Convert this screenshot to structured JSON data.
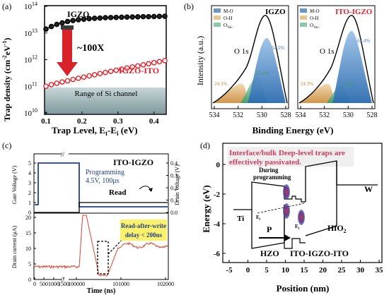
{
  "panel_a": {
    "letter": "(a)",
    "ylabel": "Trap density (cm",
    "ylabel_exp": "-2",
    "ylabel_unit": "eV",
    "ylabel_close": ")",
    "xlabel": "Trap Level, E",
    "x_ticks": [
      "0.1",
      "0.2",
      "0.3",
      "0.4"
    ],
    "y_ticks": [
      {
        "base": "10",
        "exp": "10"
      },
      {
        "base": "10",
        "exp": "11"
      },
      {
        "base": "10",
        "exp": "12"
      },
      {
        "base": "10",
        "exp": "13"
      },
      {
        "base": "10",
        "exp": "14"
      }
    ],
    "label_igzo": "IGZO",
    "label_igzo_ito": "IGZO-ITO",
    "reduction": "~100X",
    "si_range": "Range of Si channel"
  },
  "chart_data": [
    {
      "type": "scatter",
      "panel": "a",
      "xlabel": "Trap Level, Et-Ei (eV)",
      "ylabel": "Trap density (cm-2eV-1)",
      "y_scale": "log",
      "xlim": [
        0.1,
        0.43
      ],
      "ylim": [
        10000000000.0,
        100000000000000.0
      ],
      "series": [
        {
          "name": "IGZO",
          "color": "#000000",
          "x": [
            0.1,
            0.115,
            0.13,
            0.145,
            0.16,
            0.175,
            0.19,
            0.205,
            0.22,
            0.235,
            0.25,
            0.265,
            0.28,
            0.295,
            0.31,
            0.325,
            0.34,
            0.355,
            0.37,
            0.385,
            0.4,
            0.415,
            0.43
          ],
          "y": [
            14000000000000.0,
            17500000000000.0,
            21000000000000.0,
            24000000000000.0,
            27000000000000.0,
            29500000000000.0,
            31500000000000.0,
            33000000000000.0,
            34500000000000.0,
            35500000000000.0,
            36500000000000.0,
            37500000000000.0,
            38000000000000.0,
            38500000000000.0,
            39000000000000.0,
            39500000000000.0,
            40000000000000.0,
            40500000000000.0,
            41000000000000.0,
            41000000000000.0,
            41500000000000.0,
            42000000000000.0,
            42500000000000.0
          ]
        },
        {
          "name": "IGZO-ITO",
          "color": "#e8202a",
          "x": [
            0.1,
            0.115,
            0.13,
            0.145,
            0.16,
            0.175,
            0.19,
            0.205,
            0.22,
            0.235,
            0.25,
            0.265,
            0.28,
            0.295,
            0.31,
            0.325,
            0.34,
            0.355,
            0.37,
            0.385,
            0.4,
            0.415,
            0.43
          ],
          "y": [
            100000000000.0,
            115000000000.0,
            130000000000.0,
            145000000000.0,
            160000000000.0,
            180000000000.0,
            200000000000.0,
            220000000000.0,
            245000000000.0,
            270000000000.0,
            300000000000.0,
            330000000000.0,
            365000000000.0,
            400000000000.0,
            440000000000.0,
            485000000000.0,
            530000000000.0,
            580000000000.0,
            640000000000.0,
            700000000000.0,
            770000000000.0,
            840000000000.0,
            920000000000.0
          ]
        }
      ],
      "shaded_band": {
        "label": "Range of Si channel",
        "y_from": 10000000000.0,
        "y_to": 110000000000.0
      }
    },
    {
      "type": "area",
      "panel": "b-left",
      "title": "IGZO",
      "xlabel": "Binding Energy (eV)",
      "ylabel": "Intensity (a.u.)",
      "xlim": [
        534,
        528
      ],
      "x_ticks": [
        534,
        532,
        530,
        528
      ],
      "components": [
        {
          "name": "M-O",
          "center": 530.0,
          "share": "54.5%",
          "color": "#3f7fc4"
        },
        {
          "name": "O-H",
          "center": 532.0,
          "share": "24.3%",
          "color": "#d4a05a"
        },
        {
          "name": "OVac.",
          "center": 530.6,
          "share": "21.2%",
          "color": "#5fb084"
        }
      ]
    },
    {
      "type": "area",
      "panel": "b-right",
      "title": "ITO-IGZO",
      "xlabel": "Binding Energy (eV)",
      "xlim": [
        534,
        528
      ],
      "x_ticks": [
        534,
        532,
        530,
        528
      ],
      "components": [
        {
          "name": "M-O",
          "center": 530.0,
          "share": "62.4%",
          "color": "#3f7fc4"
        },
        {
          "name": "O-H",
          "center": 532.0,
          "share": "24.3%",
          "color": "#d4a05a"
        },
        {
          "name": "OVac.",
          "center": 530.6,
          "share": "13.3%",
          "color": "#5fb084"
        }
      ]
    },
    {
      "type": "line",
      "panel": "c",
      "title": "ITO-IGZO",
      "xlabel": "Time (ns)",
      "ylabel_top": "Gate Voltage (V)",
      "ylabel_right": "Drain Voltage (V)",
      "ylabel_bottom": "Drain current (μA)",
      "x_ticks": [
        0,
        500,
        1000,
        1500,
        100000,
        101000,
        102000
      ],
      "top_left_ticks": [
        0,
        1,
        2,
        3,
        4,
        5
      ],
      "top_right_ticks": [
        0.0,
        0.1,
        0.2,
        0.3,
        0.4
      ],
      "bottom_ticks": [
        0,
        5,
        10,
        15,
        20
      ],
      "annotations": [
        "Programming",
        "4.5V, 100μs",
        "Read",
        "Read-after-write delay < 200ns"
      ]
    },
    {
      "type": "line",
      "panel": "d",
      "xlabel": "Position (nm)",
      "ylabel": "Energy (eV)",
      "x_ticks": [
        -5,
        0,
        5,
        10,
        15,
        20,
        25,
        30,
        35
      ],
      "y_ticks": [
        -6,
        -4,
        -2,
        0
      ],
      "xlim": [
        -5,
        35
      ],
      "ylim": [
        -7,
        1
      ]
    }
  ],
  "panel_b": {
    "letter": "(b)",
    "ylabel": "Intensity (a.u.)",
    "xlabel": "Binding Energy (eV)",
    "x_ticks": [
      "534",
      "532",
      "530",
      "528"
    ],
    "legend": [
      "M-O",
      "O-H",
      "O"
    ],
    "legend_sub": "Vac.",
    "left_title": "IGZO",
    "right_title": "ITO-IGZO",
    "o1s": "O 1s",
    "left_pcts": {
      "mo": "54.5%",
      "oh": "24.3%",
      "ov": "21.2%"
    },
    "right_pcts": {
      "mo": "62.4%",
      "oh": "24.3%",
      "ov": "13.3%"
    }
  },
  "panel_c": {
    "letter": "(c)",
    "title": "ITO-IGZO",
    "prog1": "Programming",
    "prog2": "4.5V, 100μs",
    "read": "Read",
    "delay1": "Read-after-write",
    "delay2": "delay < 200ns",
    "ylabel_top": "Gate Voltage (V)",
    "ylabel_right": "Drain Voltage (V)",
    "ylabel_bottom": "Drain current (μA)",
    "xlabel": "Time (ns)",
    "x_ticks": [
      "0",
      "500",
      "1000",
      "1500",
      "100000",
      "101000",
      "102000"
    ],
    "top_left_ticks": [
      "0",
      "1",
      "2",
      "3",
      "4",
      "5"
    ],
    "top_right_ticks": [
      "0.0",
      "0.1",
      "0.2",
      "0.3",
      "0.4"
    ],
    "bottom_ticks": [
      "0",
      "5",
      "10",
      "15",
      "20"
    ]
  },
  "panel_d": {
    "letter": "(d)",
    "banner1": "Interface/bulk Deep-level traps are",
    "banner2": "effectively passivated.",
    "during1": "During",
    "during2": "programming",
    "ti": "Ti",
    "w": "W",
    "p": "P",
    "hzo": "HZO",
    "stack": "ITO-IGZO-ITO",
    "hfo2": "HfO",
    "hfo2_sub": "2",
    "ei": "E",
    "ei_sub": "i",
    "ylabel": "Energy (eV)",
    "xlabel": "Position (nm)",
    "x_ticks": [
      "-5",
      "0",
      "5",
      "10",
      "15",
      "20",
      "25",
      "30",
      "35"
    ],
    "y_ticks": [
      "0",
      "-2",
      "-4",
      "-6"
    ]
  },
  "colors": {
    "igzo": "#000000",
    "igzo_ito": "#e8202a",
    "si_band": "#9fb3b7",
    "mo": "#3f7fc4",
    "oh": "#d4a05a",
    "ov": "#5fb084",
    "blue_trace": "#1f3f8f",
    "red_trace": "#d9442c",
    "banner": "#d33a5a"
  }
}
